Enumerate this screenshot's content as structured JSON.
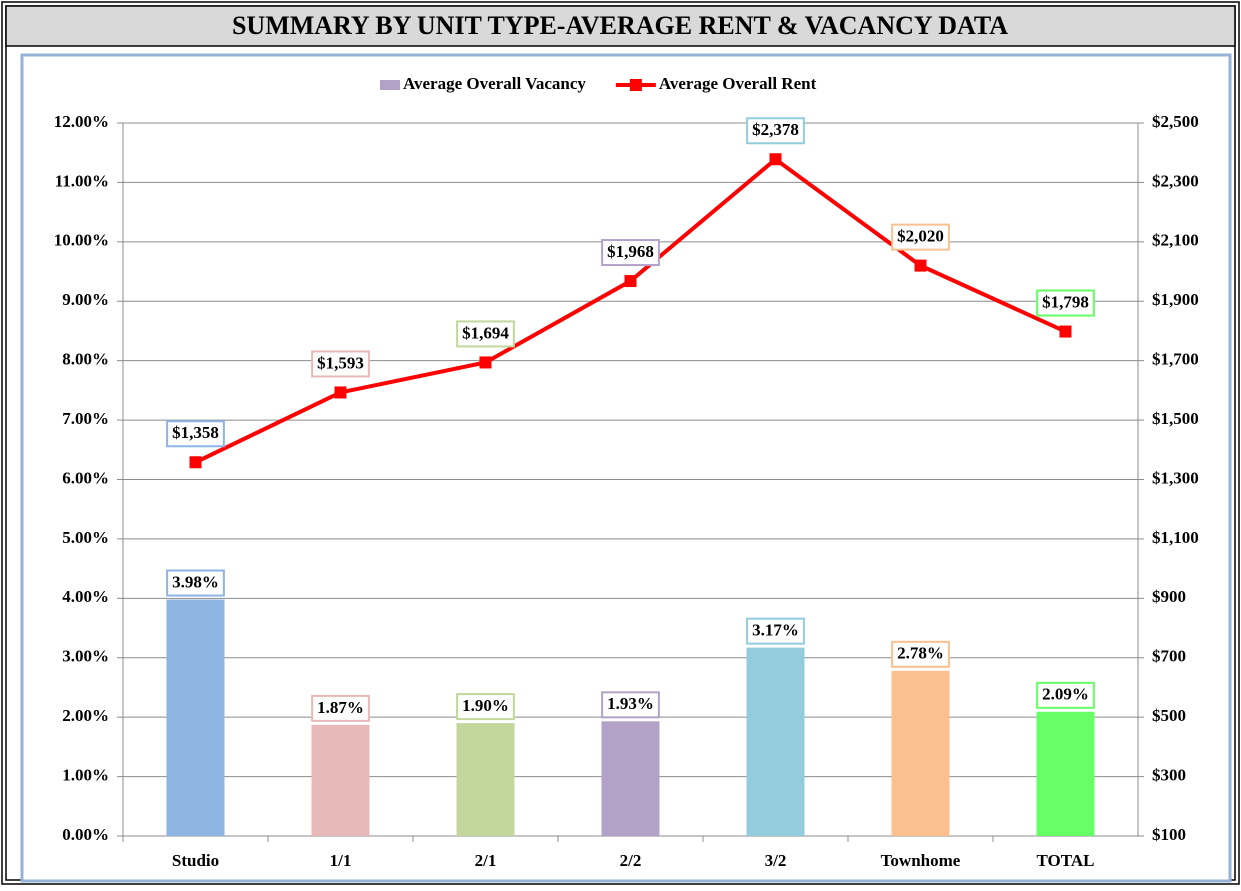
{
  "chart_data": {
    "type": "combo",
    "title": "SUMMARY BY UNIT TYPE-AVERAGE RENT & VACANCY DATA",
    "categories": [
      "Studio",
      "1/1",
      "2/1",
      "2/2",
      "3/2",
      "Townhome",
      "TOTAL"
    ],
    "series": [
      {
        "name": "Average Overall Vacancy",
        "type": "bar",
        "color": "#b3a2c7",
        "colors": [
          "#8eb4e3",
          "#e6b9b8",
          "#c3d69b",
          "#b3a2c7",
          "#93cddd",
          "#fac090",
          "#66ff66"
        ],
        "values": [
          3.98,
          1.87,
          1.9,
          1.93,
          3.17,
          2.78,
          2.09
        ],
        "value_labels": [
          "3.98%",
          "1.87%",
          "1.90%",
          "1.93%",
          "3.17%",
          "2.78%",
          "2.09%"
        ]
      },
      {
        "name": "Average Overall Rent",
        "type": "line",
        "axis": "y2",
        "color": "#ff0000",
        "values": [
          1358,
          1593,
          1694,
          1968,
          2378,
          2020,
          1798
        ],
        "value_labels": [
          "$1,358",
          "$1,593",
          "$1,694",
          "$1,968",
          "$2,378",
          "$2,020",
          "$1,798"
        ]
      }
    ],
    "ylim": [
      0,
      12
    ],
    "yticks": [
      {
        "value": 0,
        "label": "0.00%"
      },
      {
        "value": 1,
        "label": "1.00%"
      },
      {
        "value": 2,
        "label": "2.00%"
      },
      {
        "value": 3,
        "label": "3.00%"
      },
      {
        "value": 4,
        "label": "4.00%"
      },
      {
        "value": 5,
        "label": "5.00%"
      },
      {
        "value": 6,
        "label": "6.00%"
      },
      {
        "value": 7,
        "label": "7.00%"
      },
      {
        "value": 8,
        "label": "8.00%"
      },
      {
        "value": 9,
        "label": "9.00%"
      },
      {
        "value": 10,
        "label": "10.00%"
      },
      {
        "value": 11,
        "label": "11.00%"
      },
      {
        "value": 12,
        "label": "12.00%"
      }
    ],
    "y2lim": [
      100,
      2500
    ],
    "y2ticks": [
      {
        "value": 100,
        "label": "$100"
      },
      {
        "value": 300,
        "label": "$300"
      },
      {
        "value": 500,
        "label": "$500"
      },
      {
        "value": 700,
        "label": "$700"
      },
      {
        "value": 900,
        "label": "$900"
      },
      {
        "value": 1100,
        "label": "$1,100"
      },
      {
        "value": 1300,
        "label": "$1,300"
      },
      {
        "value": 1500,
        "label": "$1,500"
      },
      {
        "value": 1700,
        "label": "$1,700"
      },
      {
        "value": 1900,
        "label": "$1,900"
      },
      {
        "value": 2100,
        "label": "$2,100"
      },
      {
        "value": 2300,
        "label": "$2,300"
      },
      {
        "value": 2500,
        "label": "$2,500"
      }
    ],
    "grid": true,
    "legend": "top"
  }
}
